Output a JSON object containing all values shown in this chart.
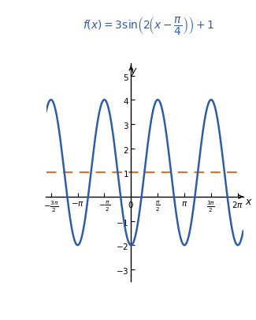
{
  "title_color": "#2E5DA8",
  "curve_color": "#2E5DA8",
  "dashed_line_color": "#E07030",
  "dashed_line_y": 1,
  "xlim": [
    -5.0,
    6.6
  ],
  "ylim": [
    -3.5,
    5.5
  ],
  "x_ticks": [
    -4.71238898038469,
    -3.14159265358979,
    -1.5707963267948966,
    0,
    1.5707963267948966,
    3.14159265358979,
    4.71238898038469,
    6.283185307179586
  ],
  "x_tick_labels": [
    "-\\frac{3\\pi}{2}",
    "-\\pi",
    "-\\frac{\\pi}{2}",
    "0",
    "\\frac{\\pi}{2}",
    "\\pi",
    "\\frac{3\\pi}{2}",
    "2\\pi"
  ],
  "y_ticks": [
    -3,
    -2,
    -1,
    1,
    2,
    3,
    4,
    5
  ],
  "y_tick_labels": [
    "-3",
    "-2",
    "-1",
    "1",
    "2",
    "3",
    "4",
    "5"
  ],
  "curve_lw": 1.8,
  "dashed_lw": 1.5,
  "tick_fontsize": 7.5,
  "axis_label_fontsize": 9,
  "title_fontsize": 10
}
